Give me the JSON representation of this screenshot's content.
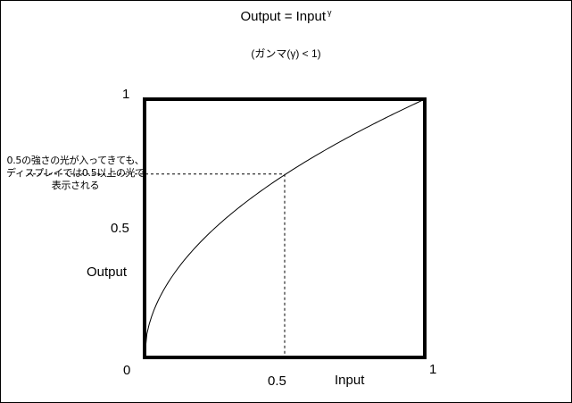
{
  "title": {
    "text": "Output = Input",
    "superscript": "γ"
  },
  "subtitle": "(ガンマ(γ) < 1)",
  "annotation": "0.5の強さの光が入ってきても、ディスプレイでは0.5以上の光で表示される",
  "chart_data": {
    "type": "line",
    "title": "Output = Input γ",
    "subtitle": "(ガンマ(γ) < 1)",
    "xlabel": "Input",
    "ylabel": "Output",
    "xlim": [
      0,
      1
    ],
    "ylim": [
      0,
      1
    ],
    "x_ticks": [
      "0.5",
      "1"
    ],
    "y_ticks": [
      "1",
      "0.5"
    ],
    "origin_label": "0",
    "gamma": 0.5,
    "x": [
      0,
      0.05,
      0.1,
      0.2,
      0.3,
      0.4,
      0.5,
      0.6,
      0.7,
      0.8,
      0.9,
      1
    ],
    "y": [
      0,
      0.22,
      0.32,
      0.45,
      0.55,
      0.63,
      0.71,
      0.77,
      0.84,
      0.89,
      0.95,
      1
    ],
    "guide_point": {
      "x": 0.5,
      "y": 0.71
    },
    "guide_style": "dashed",
    "grid": false
  }
}
